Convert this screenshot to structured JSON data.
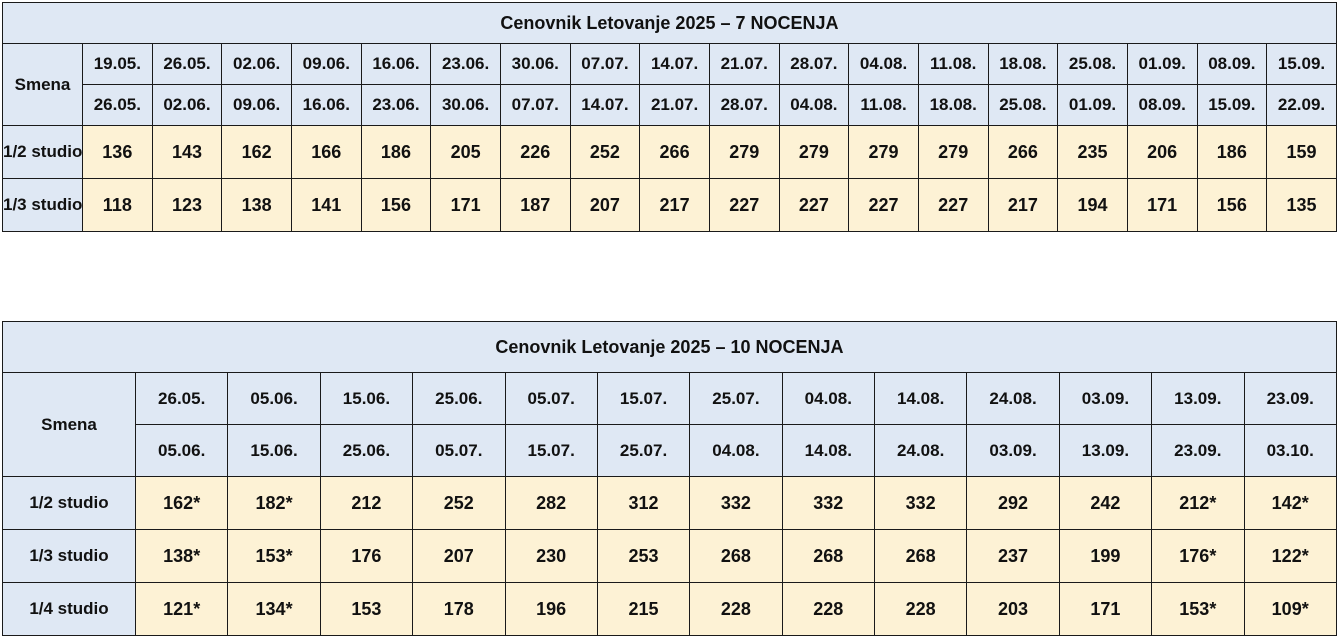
{
  "table7": {
    "title": "Cenovnik Letovanje 2025 – 7 NOCENJA",
    "row_header": "Smena",
    "start_dates": [
      "19.05.",
      "26.05.",
      "02.06.",
      "09.06.",
      "16.06.",
      "23.06.",
      "30.06.",
      "07.07.",
      "14.07.",
      "21.07.",
      "28.07.",
      "04.08.",
      "11.08.",
      "18.08.",
      "25.08.",
      "01.09.",
      "08.09.",
      "15.09."
    ],
    "end_dates": [
      "26.05.",
      "02.06.",
      "09.06.",
      "16.06.",
      "23.06.",
      "30.06.",
      "07.07.",
      "14.07.",
      "21.07.",
      "28.07.",
      "04.08.",
      "11.08.",
      "18.08.",
      "25.08.",
      "01.09.",
      "08.09.",
      "15.09.",
      "22.09."
    ],
    "rows": [
      {
        "label": "1/2 studio",
        "values": [
          "136",
          "143",
          "162",
          "166",
          "186",
          "205",
          "226",
          "252",
          "266",
          "279",
          "279",
          "279",
          "279",
          "266",
          "235",
          "206",
          "186",
          "159"
        ]
      },
      {
        "label": "1/3 studio",
        "values": [
          "118",
          "123",
          "138",
          "141",
          "156",
          "171",
          "187",
          "207",
          "217",
          "227",
          "227",
          "227",
          "227",
          "217",
          "194",
          "171",
          "156",
          "135"
        ]
      }
    ]
  },
  "table10": {
    "title": "Cenovnik Letovanje 2025 – 10 NOCENJA",
    "row_header": "Smena",
    "start_dates": [
      "26.05.",
      "05.06.",
      "15.06.",
      "25.06.",
      "05.07.",
      "15.07.",
      "25.07.",
      "04.08.",
      "14.08.",
      "24.08.",
      "03.09.",
      "13.09.",
      "23.09."
    ],
    "end_dates": [
      "05.06.",
      "15.06.",
      "25.06.",
      "05.07.",
      "15.07.",
      "25.07.",
      "04.08.",
      "14.08.",
      "24.08.",
      "03.09.",
      "13.09.",
      "23.09.",
      "03.10."
    ],
    "rows": [
      {
        "label": "1/2 studio",
        "values": [
          "162*",
          "182*",
          "212",
          "252",
          "282",
          "312",
          "332",
          "332",
          "332",
          "292",
          "242",
          "212*",
          "142*"
        ]
      },
      {
        "label": "1/3 studio",
        "values": [
          "138*",
          "153*",
          "176",
          "207",
          "230",
          "253",
          "268",
          "268",
          "268",
          "237",
          "199",
          "176*",
          "122*"
        ]
      },
      {
        "label": "1/4 studio",
        "values": [
          "121*",
          "134*",
          "153",
          "178",
          "196",
          "215",
          "228",
          "228",
          "228",
          "203",
          "171",
          "153*",
          "109*"
        ]
      }
    ]
  }
}
